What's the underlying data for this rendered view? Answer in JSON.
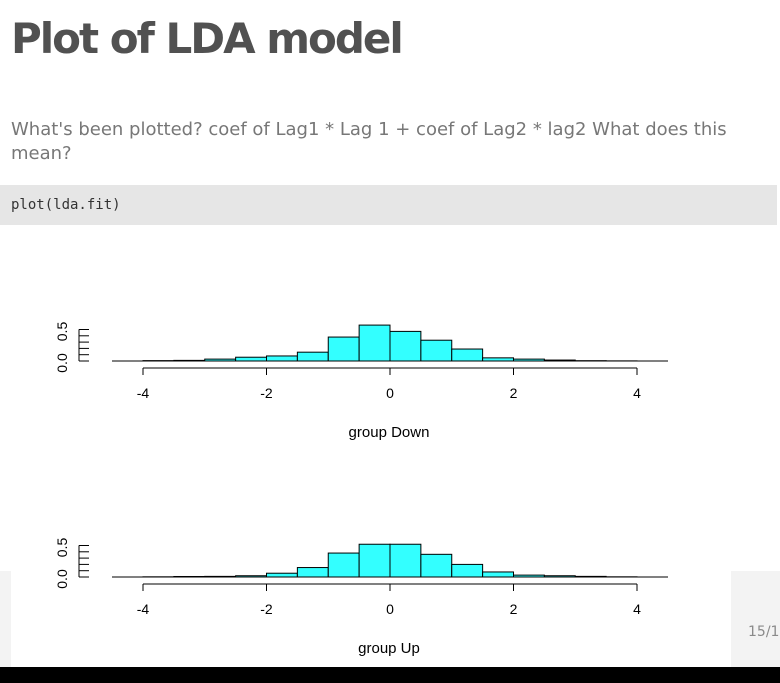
{
  "slide": {
    "title": "Plot of LDA model",
    "paragraph": "What's been plotted? coef of Lag1 * Lag 1 + coef of Lag2 * lag2 What does this mean?",
    "code": "plot(lda.fit)",
    "slide_number": "15/1"
  },
  "chart_data": [
    {
      "type": "bar",
      "title": "",
      "xlabel": "group Down",
      "ylabel": "",
      "xlim": [
        -4.2,
        4.2
      ],
      "ylim": [
        0,
        0.55
      ],
      "x_ticks": [
        "-4",
        "-2",
        "0",
        "2",
        "4"
      ],
      "y_ticks": [
        "0.0",
        "0.5"
      ],
      "bin_edges": [
        -4,
        -3.5,
        -3,
        -2.5,
        -2,
        -1.5,
        -1,
        -0.5,
        0,
        0.5,
        1,
        1.5,
        2,
        2.5,
        3,
        3.5,
        4
      ],
      "values": [
        0.006,
        0.01,
        0.03,
        0.06,
        0.08,
        0.14,
        0.38,
        0.57,
        0.47,
        0.33,
        0.19,
        0.05,
        0.03,
        0.015,
        0.005,
        0.002
      ],
      "fill": "#33ffff"
    },
    {
      "type": "bar",
      "title": "",
      "xlabel": "group Up",
      "ylabel": "",
      "xlim": [
        -4.2,
        4.2
      ],
      "ylim": [
        0,
        0.55
      ],
      "x_ticks": [
        "-4",
        "-2",
        "0",
        "2",
        "4"
      ],
      "y_ticks": [
        "0.0",
        "0.5"
      ],
      "bin_edges": [
        -4,
        -3.5,
        -3,
        -2.5,
        -2,
        -1.5,
        -1,
        -0.5,
        0,
        0.5,
        1,
        1.5,
        2,
        2.5,
        3,
        3.5,
        4
      ],
      "values": [
        0.003,
        0.008,
        0.01,
        0.02,
        0.06,
        0.15,
        0.38,
        0.52,
        0.52,
        0.36,
        0.2,
        0.08,
        0.03,
        0.02,
        0.01,
        0.003
      ],
      "fill": "#33ffff"
    }
  ]
}
